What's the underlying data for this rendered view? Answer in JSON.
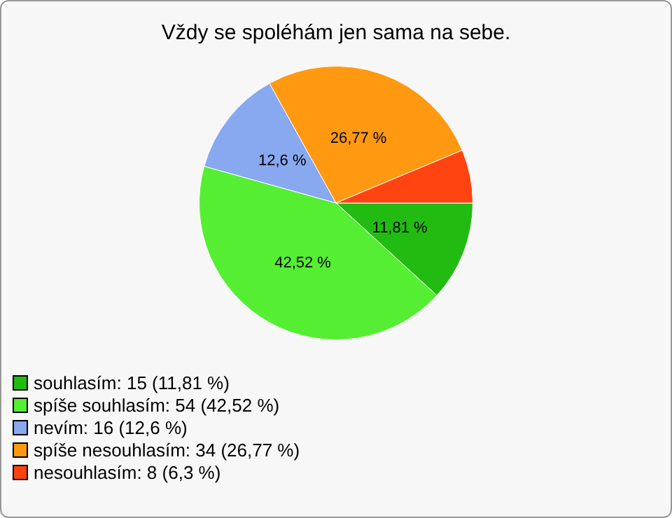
{
  "chart_data": {
    "type": "pie",
    "title": "Vždy se spoléhám jen sama na sebe.",
    "categories": [
      "souhlasím: 15 (11,81 %)",
      "spíše souhlasím: 54 (42,52 %)",
      "nevím: 16 (12,6 %)",
      "spíše nesouhlasím: 34 (26,77 %)",
      "nesouhlasím: 8 (6,3 %)"
    ],
    "values": [
      11.81,
      42.52,
      12.6,
      26.77,
      6.3
    ],
    "colors": [
      "#22bb11",
      "#55ee33",
      "#88a8f0",
      "#ff9911",
      "#ff4411"
    ],
    "value_labels": [
      "11,81 %",
      "42,52 %",
      "12,6 %",
      "26,77 %",
      null
    ],
    "legend": "bottom left"
  }
}
